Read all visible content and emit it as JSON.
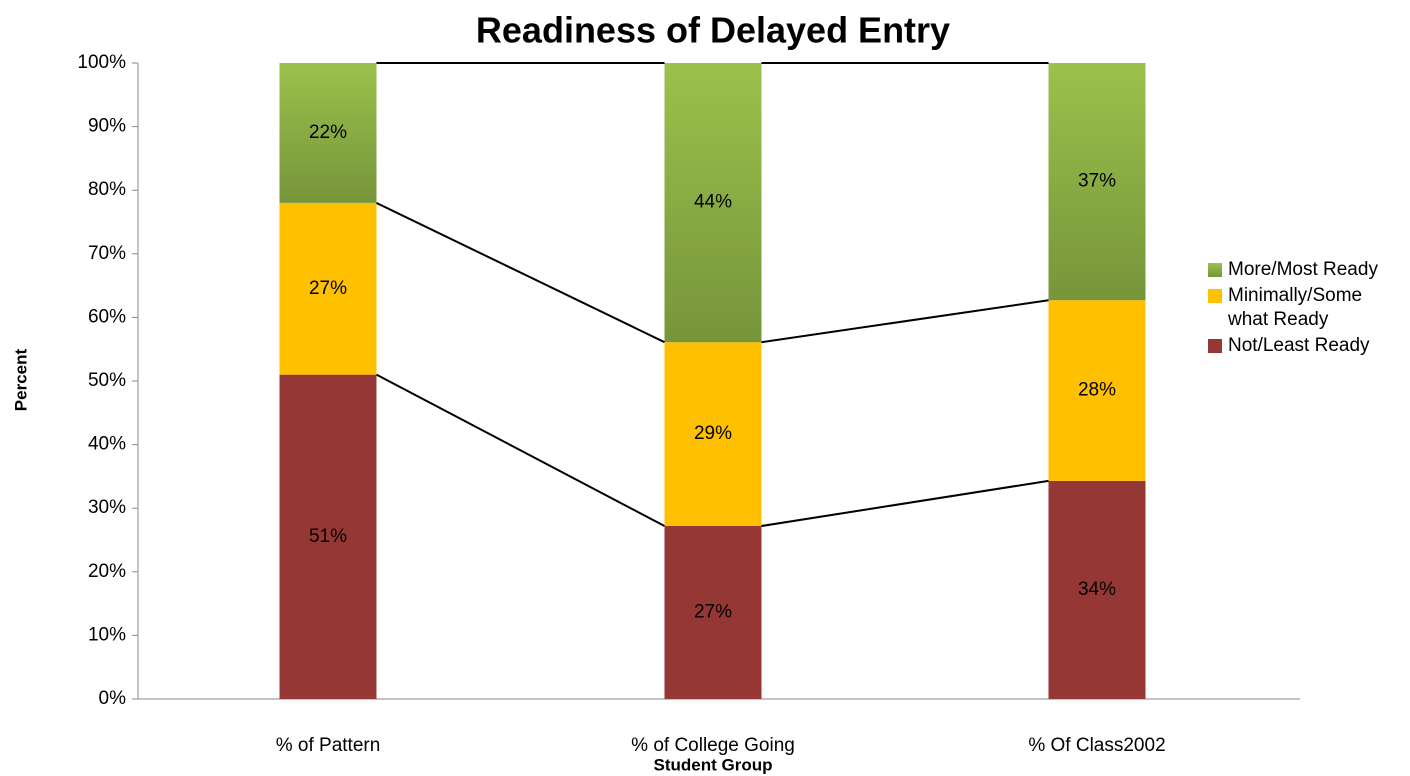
{
  "chart_data": {
    "type": "stacked_bar",
    "title": "Readiness of Delayed Entry",
    "x_label": "Student Group",
    "y_label": "Percent",
    "categories": [
      "% of Pattern",
      "% of College Going",
      "% Of Class2002"
    ],
    "series": [
      {
        "name": "Not/Least Ready",
        "color": "#953735",
        "values": [
          51,
          27.2,
          34.3
        ],
        "value_labels": [
          "51%",
          "27%",
          "34%"
        ]
      },
      {
        "name": "Minimally/Some what Ready",
        "color": "#ffc000",
        "values": [
          27,
          28.9,
          28.4
        ],
        "value_labels": [
          "27%",
          "29%",
          "28%"
        ]
      },
      {
        "name": "More/Most Ready",
        "color": "#8db04a",
        "values": [
          22,
          43.9,
          37.3
        ],
        "value_labels": [
          "22%",
          "44%",
          "37%"
        ]
      }
    ],
    "ylim": [
      0,
      100
    ],
    "yticks": [
      {
        "value": 0,
        "label": "0%"
      },
      {
        "value": 10,
        "label": "10%"
      },
      {
        "value": 20,
        "label": "20%"
      },
      {
        "value": 30,
        "label": "30%"
      },
      {
        "value": 40,
        "label": "40%"
      },
      {
        "value": 50,
        "label": "50%"
      },
      {
        "value": 60,
        "label": "60%"
      },
      {
        "value": 70,
        "label": "70%"
      },
      {
        "value": 80,
        "label": "80%"
      },
      {
        "value": 90,
        "label": "90%"
      },
      {
        "value": 100,
        "label": "100%"
      }
    ],
    "series_lines": true,
    "legend": "right"
  }
}
